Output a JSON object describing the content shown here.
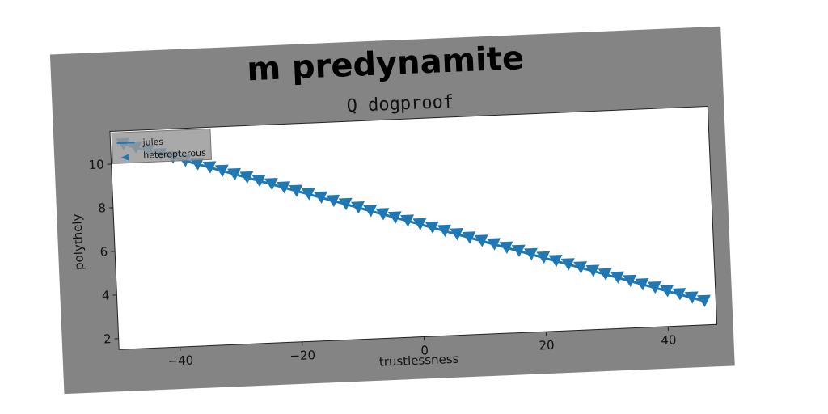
{
  "chart_data": {
    "type": "line",
    "suptitle": "m predynamite",
    "title": "Q dogproof",
    "xlabel": "trustlessness",
    "ylabel": "polythely",
    "xlim": [
      -50,
      48
    ],
    "ylim": [
      1.5,
      11.5
    ],
    "xticks": [
      "−40",
      "−20",
      "0",
      "20",
      "40"
    ],
    "xtick_values": [
      -40,
      -20,
      0,
      20,
      40
    ],
    "yticks": [
      "2",
      "4",
      "6",
      "8",
      "10"
    ],
    "ytick_values": [
      2,
      4,
      6,
      8,
      10
    ],
    "grid": false,
    "legend_position": "upper-left",
    "series": [
      {
        "name": "jules",
        "marker": "none",
        "color": "#1f77b4",
        "x": [
          -48,
          46
        ],
        "y": [
          10.9,
          2.6
        ]
      },
      {
        "name": "heteropterous",
        "marker": "triangle",
        "color": "#1f77b4",
        "x": [
          -48,
          -46,
          -44,
          -42,
          -40,
          -38,
          -36,
          -34,
          -32,
          -30,
          -28,
          -26,
          -24,
          -22,
          -20,
          -18,
          -16,
          -14,
          -12,
          -10,
          -8,
          -6,
          -4,
          -2,
          0,
          2,
          4,
          6,
          8,
          10,
          12,
          14,
          16,
          18,
          20,
          22,
          24,
          26,
          28,
          30,
          32,
          34,
          36,
          38,
          40,
          42,
          44,
          46
        ],
        "y": [
          10.9,
          10.72,
          10.55,
          10.37,
          10.2,
          10.02,
          9.84,
          9.67,
          9.49,
          9.31,
          9.14,
          8.96,
          8.79,
          8.61,
          8.43,
          8.26,
          8.08,
          7.9,
          7.73,
          7.55,
          7.37,
          7.2,
          7.02,
          6.85,
          6.67,
          6.49,
          6.32,
          6.14,
          5.96,
          5.79,
          5.61,
          5.43,
          5.26,
          5.08,
          4.91,
          4.73,
          4.55,
          4.38,
          4.2,
          4.02,
          3.85,
          3.67,
          3.49,
          3.32,
          3.14,
          2.97,
          2.79,
          2.61
        ]
      }
    ]
  }
}
